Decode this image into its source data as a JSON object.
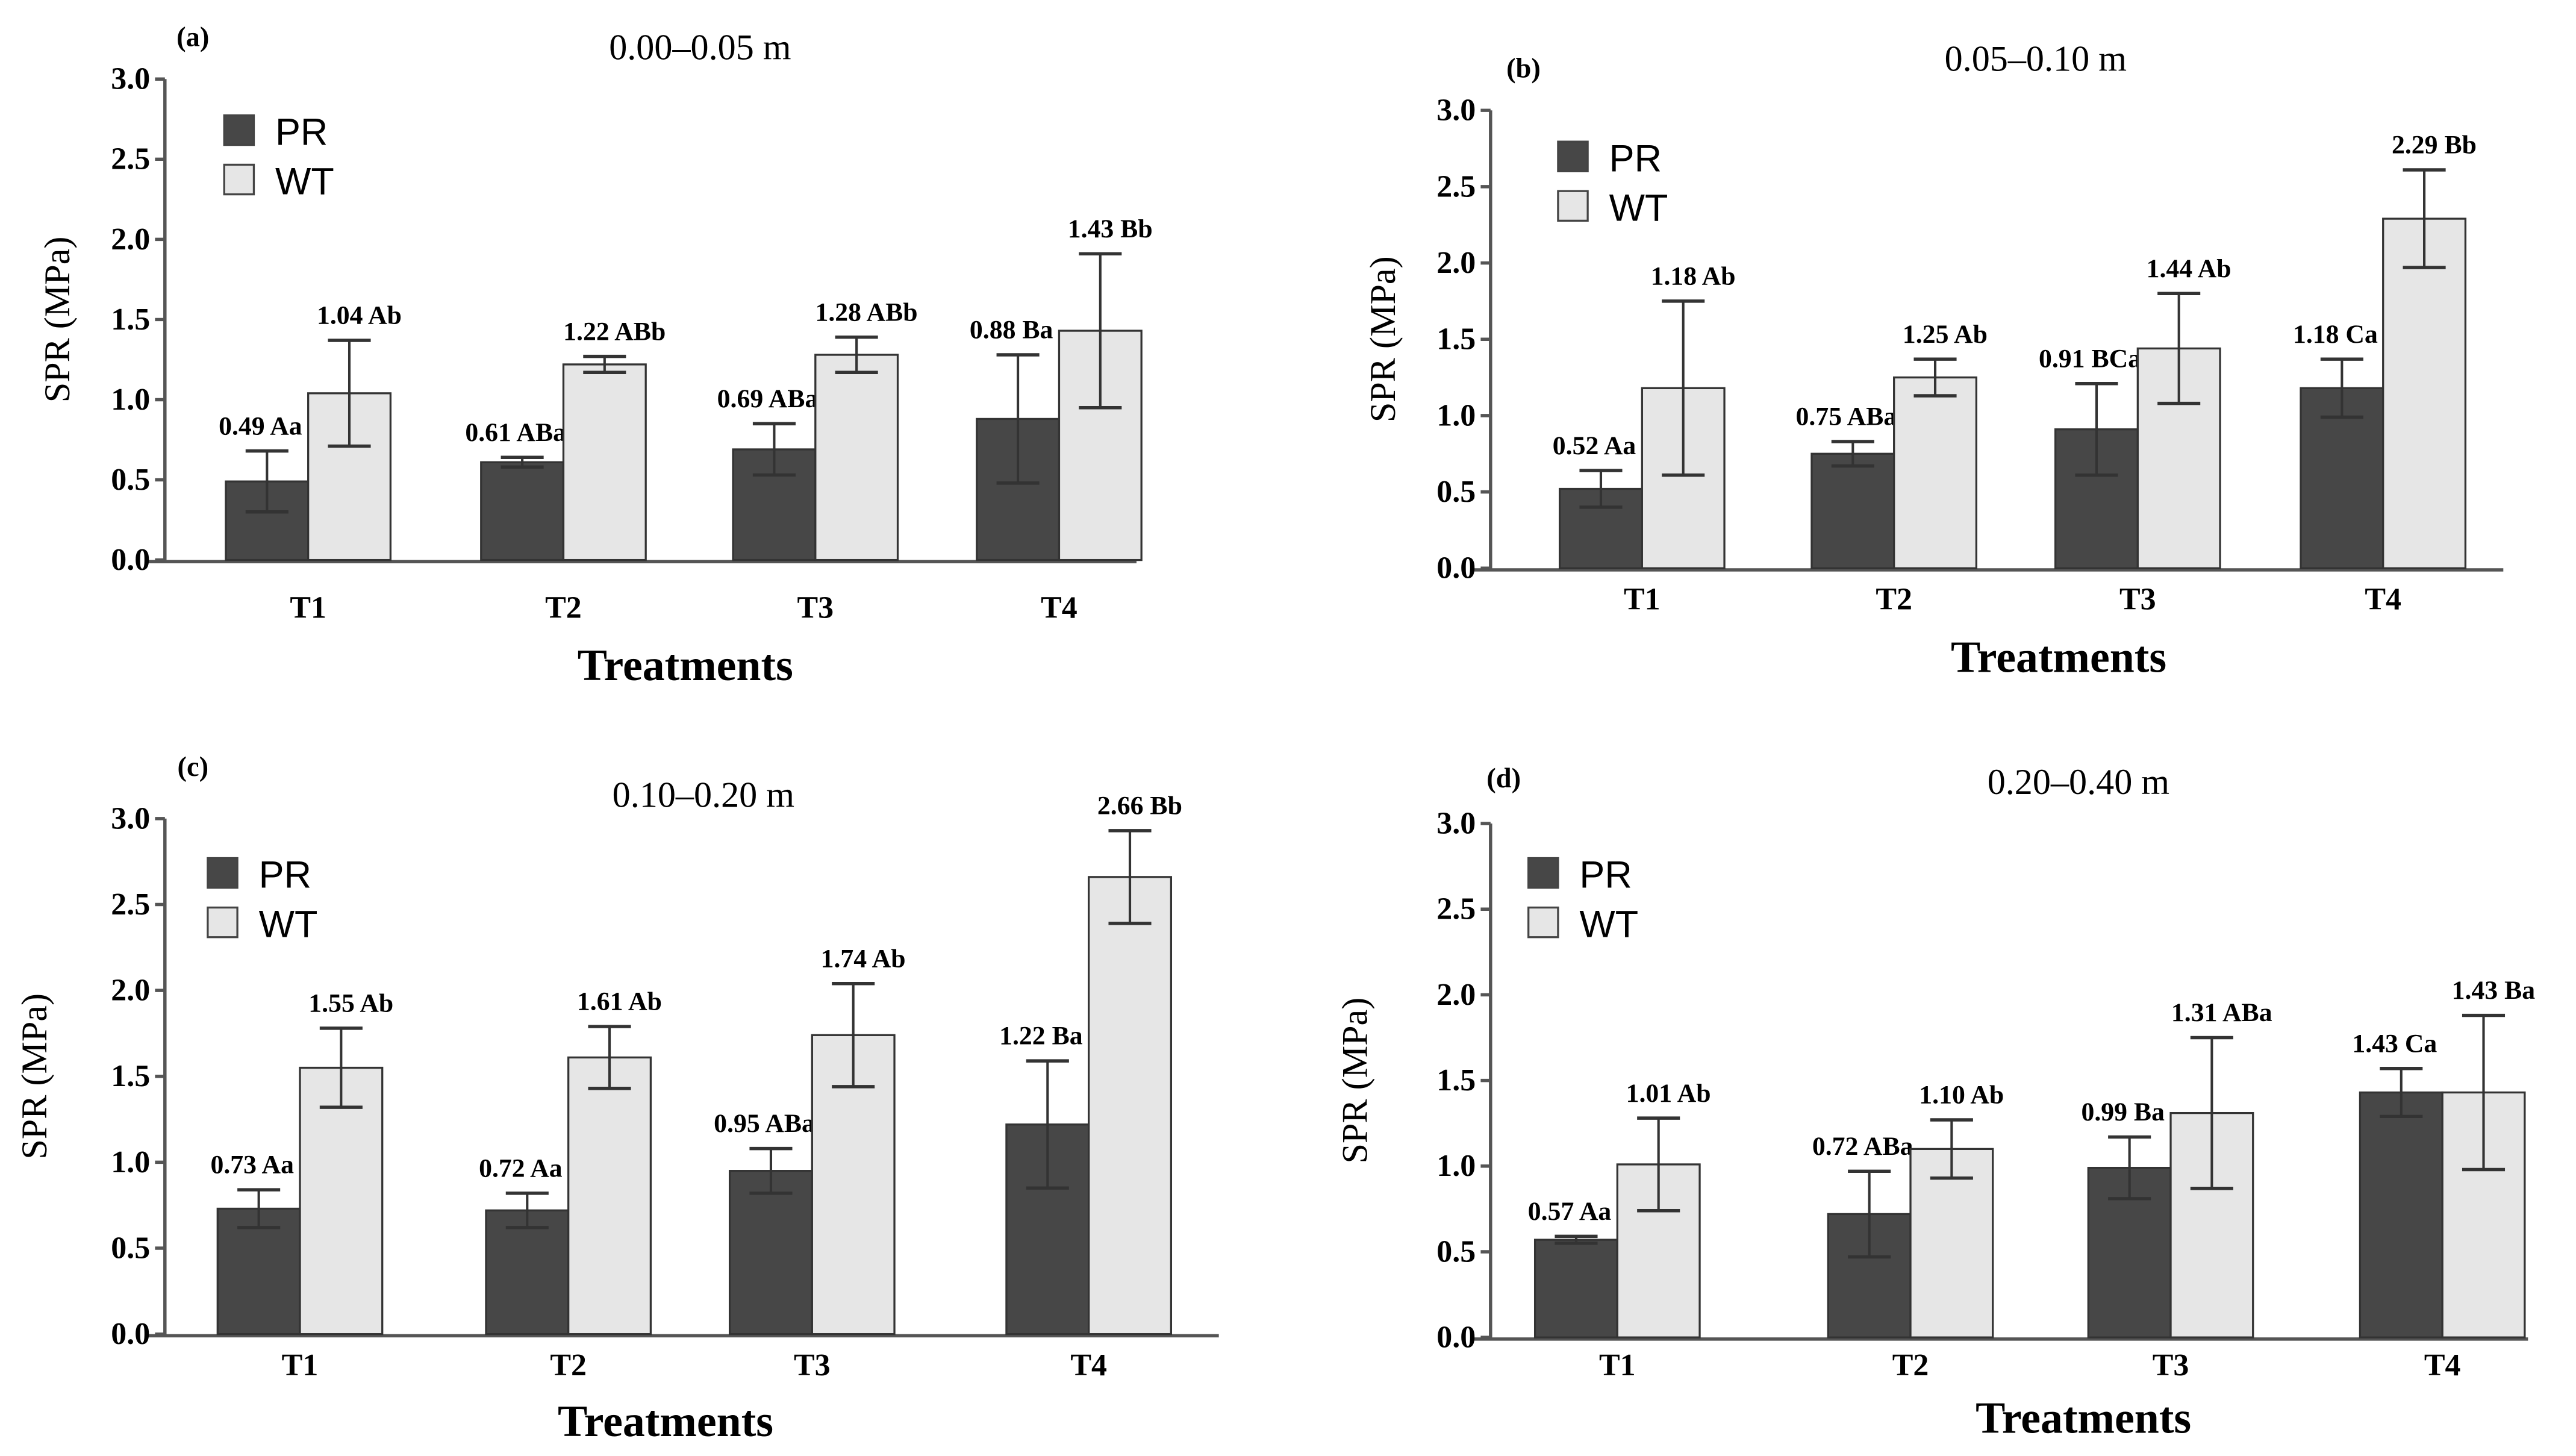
{
  "colors": {
    "PR": "#474747",
    "WT": "#e6e6e6",
    "axis": "#555555",
    "text": "#000000"
  },
  "chart_data": [
    {
      "type": "bar",
      "panel": "(a)",
      "title": "0.00–0.05 m",
      "xlabel": "Treatments",
      "ylabel": "SPR (MPa)",
      "ylim": [
        0,
        3.0
      ],
      "yticks": [
        "0.0",
        "0.5",
        "1.0",
        "1.5",
        "2.0",
        "2.5",
        "3.0"
      ],
      "categories": [
        "T1",
        "T2",
        "T3",
        "T4"
      ],
      "legend": {
        "position": "top-left",
        "entries": [
          "PR",
          "WT"
        ]
      },
      "series": [
        {
          "name": "PR",
          "values": [
            0.49,
            0.61,
            0.69,
            0.88
          ],
          "errors": [
            0.19,
            0.03,
            0.16,
            0.4
          ],
          "labels": [
            "0.49 Aa",
            "0.61 ABa",
            "0.69 ABa",
            "0.88 Ba"
          ]
        },
        {
          "name": "WT",
          "values": [
            1.04,
            1.22,
            1.28,
            1.43
          ],
          "errors": [
            0.33,
            0.05,
            0.11,
            0.48
          ],
          "labels": [
            "1.04 Ab",
            "1.22 ABb",
            "1.28 ABb",
            "1.43 Bb"
          ]
        }
      ]
    },
    {
      "type": "bar",
      "panel": "(b)",
      "title": "0.05–0.10 m",
      "xlabel": "Treatments",
      "ylabel": "SPR (MPa)",
      "ylim": [
        0,
        3.0
      ],
      "yticks": [
        "0.0",
        "0.5",
        "1.0",
        "1.5",
        "2.0",
        "2.5",
        "3.0"
      ],
      "categories": [
        "T1",
        "T2",
        "T3",
        "T4"
      ],
      "legend": {
        "position": "top-left",
        "entries": [
          "PR",
          "WT"
        ]
      },
      "series": [
        {
          "name": "PR",
          "values": [
            0.52,
            0.75,
            0.91,
            1.18
          ],
          "errors": [
            0.12,
            0.08,
            0.3,
            0.19
          ],
          "labels": [
            "0.52 Aa",
            "0.75 ABa",
            "0.91 BCa",
            "1.18 Ca"
          ]
        },
        {
          "name": "WT",
          "values": [
            1.18,
            1.25,
            1.44,
            2.29
          ],
          "errors": [
            0.57,
            0.12,
            0.36,
            0.32
          ],
          "labels": [
            "1.18 Ab",
            "1.25 Ab",
            "1.44 Ab",
            "2.29 Bb"
          ]
        }
      ]
    },
    {
      "type": "bar",
      "panel": "(c)",
      "title": "0.10–0.20 m",
      "xlabel": "Treatments",
      "ylabel": "SPR (MPa)",
      "ylim": [
        0,
        3.0
      ],
      "yticks": [
        "0.0",
        "0.5",
        "1.0",
        "1.5",
        "2.0",
        "2.5",
        "3.0"
      ],
      "categories": [
        "T1",
        "T2",
        "T3",
        "T4"
      ],
      "legend": {
        "position": "top-left",
        "entries": [
          "PR",
          "WT"
        ]
      },
      "series": [
        {
          "name": "PR",
          "values": [
            0.73,
            0.72,
            0.95,
            1.22
          ],
          "errors": [
            0.11,
            0.1,
            0.13,
            0.37
          ],
          "labels": [
            "0.73 Aa",
            "0.72 Aa",
            "0.95 ABa",
            "1.22 Ba"
          ]
        },
        {
          "name": "WT",
          "values": [
            1.55,
            1.61,
            1.74,
            2.66
          ],
          "errors": [
            0.23,
            0.18,
            0.3,
            0.27
          ],
          "labels": [
            "1.55 Ab",
            "1.61 Ab",
            "1.74 Ab",
            "2.66 Bb"
          ]
        }
      ]
    },
    {
      "type": "bar",
      "panel": "(d)",
      "title": "0.20–0.40 m",
      "xlabel": "Treatments",
      "ylabel": "SPR (MPa)",
      "ylim": [
        0,
        3.0
      ],
      "yticks": [
        "0.0",
        "0.5",
        "1.0",
        "1.5",
        "2.0",
        "2.5",
        "3.0"
      ],
      "categories": [
        "T1",
        "T2",
        "T3",
        "T4"
      ],
      "legend": {
        "position": "top-left",
        "entries": [
          "PR",
          "WT"
        ]
      },
      "series": [
        {
          "name": "PR",
          "values": [
            0.57,
            0.72,
            0.99,
            1.43
          ],
          "errors": [
            0.02,
            0.25,
            0.18,
            0.14
          ],
          "labels": [
            "0.57 Aa",
            "0.72 ABa",
            "0.99 Ba",
            "1.43 Ca"
          ]
        },
        {
          "name": "WT",
          "values": [
            1.01,
            1.1,
            1.31,
            1.43
          ],
          "errors": [
            0.27,
            0.17,
            0.44,
            0.45
          ],
          "labels": [
            "1.01 Ab",
            "1.10 Ab",
            "1.31 ABa",
            "1.43 Ba"
          ]
        }
      ]
    }
  ]
}
